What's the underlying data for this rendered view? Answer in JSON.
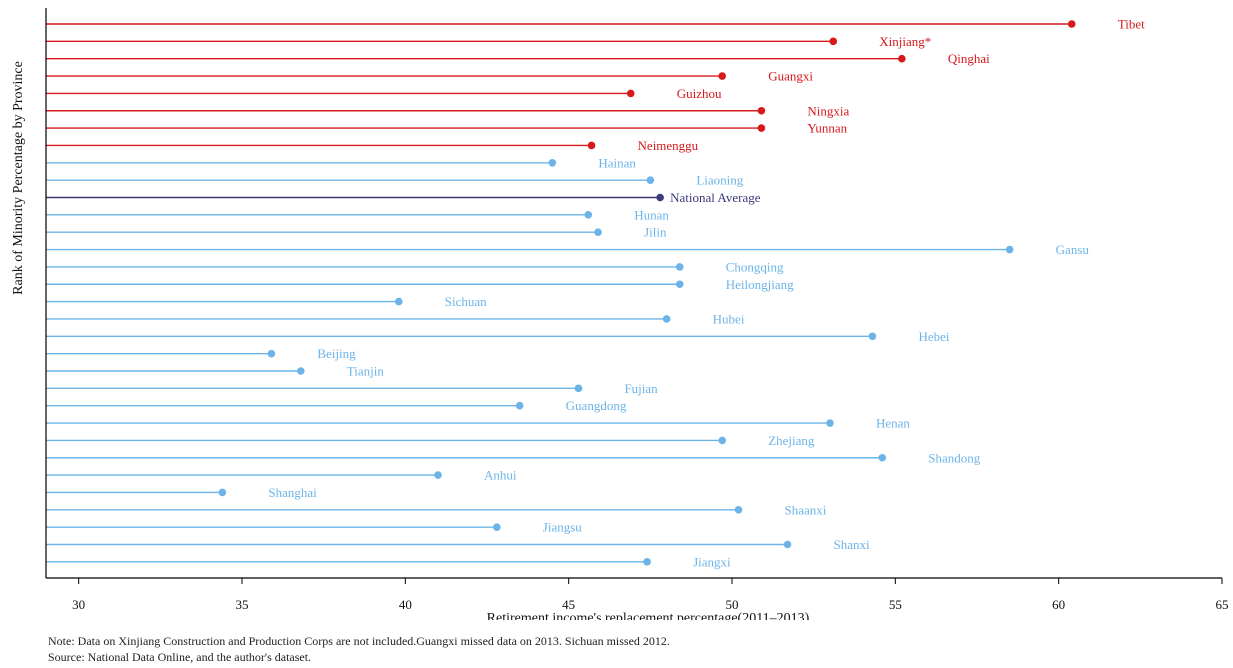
{
  "chart_data": {
    "type": "lollipop",
    "ylabel": "Rank of Minority Percentage by Province",
    "xlabel": "Retirement income's replacement percentage(2011–2013)",
    "xlim": [
      29,
      65
    ],
    "xticks": [
      30,
      35,
      40,
      45,
      50,
      55,
      60,
      65
    ],
    "grid": false,
    "legend": "none",
    "colors": {
      "minority": "#d7191c",
      "average": "#3b3a7a",
      "other": "#6cb4e8"
    },
    "categories": [
      "Tibet",
      "Xinjiang*",
      "Qinghai",
      "Guangxi",
      "Guizhou",
      "Ningxia",
      "Yunnan",
      "Neimenggu",
      "Hainan",
      "Liaoning",
      "National Average",
      "Hunan",
      "Jilin",
      "Gansu",
      "Chongqing",
      "Heilongjiang",
      "Sichuan",
      "Hubei",
      "Hebei",
      "Beijing",
      "Tianjin",
      "Fujian",
      "Guangdong",
      "Henan",
      "Zhejiang",
      "Shandong",
      "Anhui",
      "Shanghai",
      "Shaanxi",
      "Jiangsu",
      "Shanxi",
      "Jiangxi"
    ],
    "values": [
      60.4,
      53.1,
      55.2,
      49.7,
      46.9,
      50.9,
      50.9,
      45.7,
      44.5,
      47.5,
      47.8,
      45.6,
      45.9,
      58.5,
      48.4,
      48.4,
      39.8,
      48.0,
      54.3,
      35.9,
      36.8,
      45.3,
      43.5,
      53.0,
      49.7,
      54.6,
      41.0,
      34.4,
      50.2,
      42.8,
      51.7,
      47.4
    ],
    "groups": [
      "minority",
      "minority",
      "minority",
      "minority",
      "minority",
      "minority",
      "minority",
      "minority",
      "other",
      "other",
      "average",
      "other",
      "other",
      "other",
      "other",
      "other",
      "other",
      "other",
      "other",
      "other",
      "other",
      "other",
      "other",
      "other",
      "other",
      "other",
      "other",
      "other",
      "other",
      "other",
      "other",
      "other"
    ]
  },
  "notes": {
    "note": "Note: Data on Xinjiang Construction and Production Corps are not included.Guangxi missed data on 2013. Sichuan missed 2012.",
    "source": "Source: National Data Online, and the author's dataset."
  }
}
